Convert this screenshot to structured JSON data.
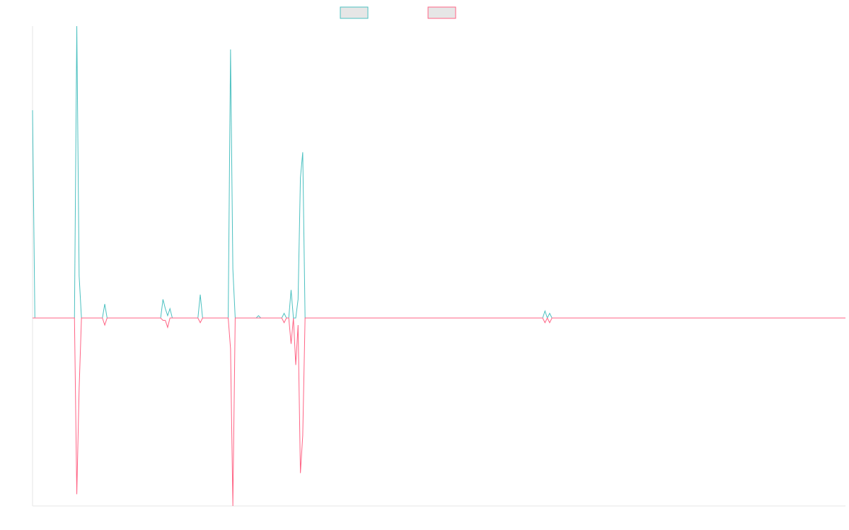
{
  "chart_data": {
    "type": "line",
    "title": "",
    "xlabel": "",
    "ylabel": "",
    "grid": false,
    "legend_position": "top-center",
    "xlim": [
      0,
      349
    ],
    "ylim": [
      -80,
      125
    ],
    "series": [
      {
        "color": "#4bc0c0",
        "fill": "#e6e6e6",
        "points": [
          [
            0,
            89
          ],
          [
            1,
            0
          ],
          [
            17,
            0
          ],
          [
            18,
            0
          ],
          [
            19,
            125
          ],
          [
            20,
            18
          ],
          [
            21,
            0
          ],
          [
            30,
            0
          ],
          [
            31,
            6
          ],
          [
            32,
            0
          ],
          [
            55,
            0
          ],
          [
            56,
            8
          ],
          [
            57,
            4
          ],
          [
            58,
            1
          ],
          [
            59,
            4
          ],
          [
            60,
            0
          ],
          [
            71,
            0
          ],
          [
            72,
            10
          ],
          [
            73,
            0
          ],
          [
            84,
            0
          ],
          [
            85,
            115
          ],
          [
            86,
            21
          ],
          [
            87,
            0
          ],
          [
            96,
            0
          ],
          [
            97,
            1
          ],
          [
            98,
            0
          ],
          [
            107,
            0
          ],
          [
            108,
            2
          ],
          [
            109,
            0
          ],
          [
            110,
            0
          ],
          [
            111,
            12
          ],
          [
            112,
            0
          ],
          [
            113,
            0
          ],
          [
            114,
            8
          ],
          [
            115,
            60
          ],
          [
            116,
            71
          ],
          [
            117,
            0
          ],
          [
            131,
            0
          ],
          [
            132,
            0
          ],
          [
            133,
            0
          ],
          [
            219,
            0
          ],
          [
            220,
            3
          ],
          [
            221,
            0
          ],
          [
            222,
            2
          ],
          [
            223,
            0
          ],
          [
            349,
            0
          ]
        ]
      },
      {
        "color": "#ff6384",
        "fill": "#e6e6e6",
        "points": [
          [
            0,
            0
          ],
          [
            17,
            0
          ],
          [
            18,
            0
          ],
          [
            19,
            -75
          ],
          [
            20,
            -30
          ],
          [
            21,
            0
          ],
          [
            30,
            0
          ],
          [
            31,
            -3
          ],
          [
            32,
            0
          ],
          [
            55,
            0
          ],
          [
            56,
            -1
          ],
          [
            57,
            -1
          ],
          [
            58,
            -4
          ],
          [
            59,
            0
          ],
          [
            60,
            0
          ],
          [
            71,
            0
          ],
          [
            72,
            -2
          ],
          [
            73,
            0
          ],
          [
            84,
            0
          ],
          [
            85,
            -13
          ],
          [
            86,
            -80
          ],
          [
            87,
            0
          ],
          [
            96,
            0
          ],
          [
            97,
            0
          ],
          [
            98,
            0
          ],
          [
            107,
            0
          ],
          [
            108,
            -2
          ],
          [
            109,
            0
          ],
          [
            110,
            0
          ],
          [
            111,
            -11
          ],
          [
            112,
            0
          ],
          [
            113,
            -20
          ],
          [
            114,
            -3
          ],
          [
            115,
            -66
          ],
          [
            116,
            -50
          ],
          [
            117,
            0
          ],
          [
            131,
            0
          ],
          [
            132,
            0
          ],
          [
            133,
            0
          ],
          [
            219,
            0
          ],
          [
            220,
            -2
          ],
          [
            221,
            0
          ],
          [
            222,
            -2
          ],
          [
            223,
            0
          ],
          [
            349,
            0
          ]
        ]
      }
    ]
  }
}
